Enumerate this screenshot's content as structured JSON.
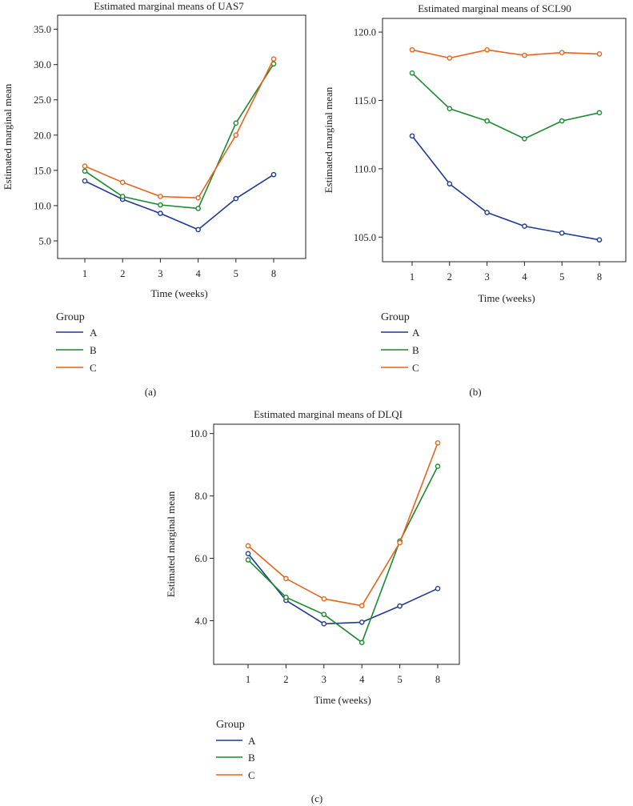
{
  "legend_title": "Group",
  "chart_data": [
    {
      "type": "line",
      "panel_label": "(a)",
      "title": "Estimated marginal means of UAS7",
      "xlabel": "Time (weeks)",
      "ylabel": "Estimated marginal mean",
      "categories": [
        "1",
        "2",
        "3",
        "4",
        "5",
        "8"
      ],
      "ylim": [
        2.5,
        37.0
      ],
      "yticks": [
        5.0,
        10.0,
        15.0,
        20.0,
        25.0,
        30.0,
        35.0
      ],
      "ytick_labels": [
        "5.0",
        "10.0",
        "15.0",
        "20.0",
        "25.0",
        "30.0",
        "35.0"
      ],
      "grid": false,
      "legend_position": "below",
      "series": [
        {
          "name": "A",
          "color": "#1f3a93",
          "values": [
            13.5,
            10.9,
            8.9,
            6.6,
            11.0,
            14.4
          ]
        },
        {
          "name": "B",
          "color": "#1a8a2e",
          "values": [
            14.9,
            11.3,
            10.1,
            9.6,
            21.7,
            30.1
          ]
        },
        {
          "name": "C",
          "color": "#e8641b",
          "values": [
            15.6,
            13.3,
            11.3,
            11.1,
            20.0,
            30.8
          ]
        }
      ]
    },
    {
      "type": "line",
      "panel_label": "(b)",
      "title": "Estimated marginal means of SCL90",
      "xlabel": "Time (weeks)",
      "ylabel": "Estimated marginal mean",
      "categories": [
        "1",
        "2",
        "3",
        "4",
        "5",
        "8"
      ],
      "ylim": [
        103.2,
        121.0
      ],
      "yticks": [
        105.0,
        110.0,
        115.0,
        120.0
      ],
      "ytick_labels": [
        "105.0",
        "110.0",
        "115.0",
        "120.0"
      ],
      "grid": false,
      "legend_position": "below",
      "series": [
        {
          "name": "A",
          "color": "#1f3a93",
          "values": [
            112.4,
            108.9,
            106.8,
            105.8,
            105.3,
            104.8
          ]
        },
        {
          "name": "B",
          "color": "#1a8a2e",
          "values": [
            117.0,
            114.4,
            113.5,
            112.2,
            113.5,
            114.1
          ]
        },
        {
          "name": "C",
          "color": "#e8641b",
          "values": [
            118.7,
            118.1,
            118.7,
            118.3,
            118.5,
            118.4
          ]
        }
      ]
    },
    {
      "type": "line",
      "panel_label": "(c)",
      "title": "Estimated marginal means of DLQI",
      "xlabel": "Time (weeks)",
      "ylabel": "Estimated marginal mean",
      "categories": [
        "1",
        "2",
        "3",
        "4",
        "5",
        "8"
      ],
      "ylim": [
        2.6,
        10.3
      ],
      "yticks": [
        4.0,
        6.0,
        8.0,
        10.0
      ],
      "ytick_labels": [
        "4.0",
        "6.0",
        "8.0",
        "10.0"
      ],
      "grid": false,
      "legend_position": "below",
      "series": [
        {
          "name": "A",
          "color": "#1f3a93",
          "values": [
            6.15,
            4.65,
            3.9,
            3.95,
            4.47,
            5.03
          ]
        },
        {
          "name": "B",
          "color": "#1a8a2e",
          "values": [
            5.95,
            4.75,
            4.2,
            3.3,
            6.55,
            8.95
          ]
        },
        {
          "name": "C",
          "color": "#e8641b",
          "values": [
            6.4,
            5.35,
            4.7,
            4.48,
            6.5,
            9.7
          ]
        }
      ]
    }
  ]
}
